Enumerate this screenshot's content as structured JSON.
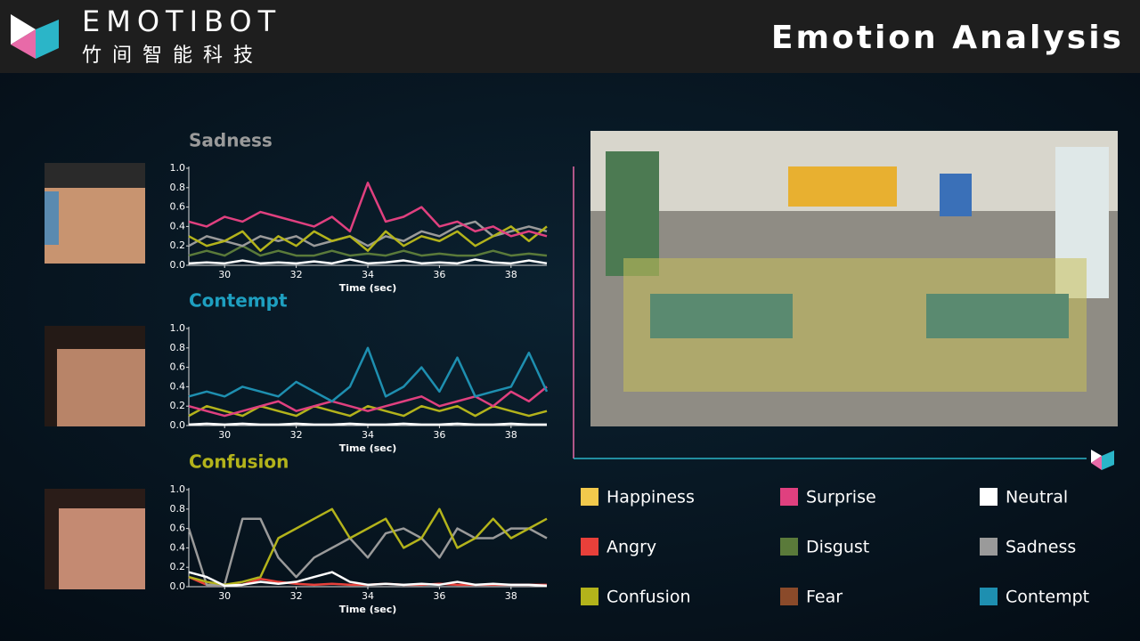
{
  "header": {
    "brand": "EMOTIBOT",
    "brand_cn": "竹间智能科技",
    "title": "Emotion Analysis"
  },
  "legend": [
    {
      "label": "Happiness",
      "color": "#f2c94c"
    },
    {
      "label": "Surprise",
      "color": "#e0407f"
    },
    {
      "label": "Neutral",
      "color": "#ffffff"
    },
    {
      "label": "Angry",
      "color": "#e8403a"
    },
    {
      "label": "Disgust",
      "color": "#5a7a3a"
    },
    {
      "label": "Sadness",
      "color": "#9a9a9a"
    },
    {
      "label": "Confusion",
      "color": "#b3b31b"
    },
    {
      "label": "Fear",
      "color": "#8a4a2a"
    },
    {
      "label": "Contempt",
      "color": "#1e8fb0"
    }
  ],
  "chart_data": [
    {
      "type": "line",
      "title": "Sadness",
      "title_color": "#9a9a9a",
      "xlabel": "Time (sec)",
      "x": [
        29,
        29.5,
        30,
        30.5,
        31,
        31.5,
        32,
        32.5,
        33,
        33.5,
        34,
        34.5,
        35,
        35.5,
        36,
        36.5,
        37,
        37.5,
        38,
        38.5,
        39
      ],
      "xlim": [
        29,
        39
      ],
      "xticks": [
        30,
        32,
        34,
        36,
        38
      ],
      "ylim": [
        0,
        1
      ],
      "yticks": [
        {
          "value": 0,
          "label": "0.0"
        },
        0.2,
        0.4,
        0.6,
        0.8,
        {
          "value": 1,
          "label": "1.0"
        }
      ],
      "series": [
        {
          "color": "#5a7a3a",
          "values": [
            0.1,
            0.15,
            0.1,
            0.2,
            0.1,
            0.15,
            0.1,
            0.1,
            0.15,
            0.1,
            0.12,
            0.1,
            0.15,
            0.1,
            0.12,
            0.1,
            0.1,
            0.15,
            0.1,
            0.12,
            0.1
          ]
        },
        {
          "color": "#9a9a9a",
          "values": [
            0.2,
            0.3,
            0.25,
            0.2,
            0.3,
            0.25,
            0.3,
            0.2,
            0.25,
            0.3,
            0.2,
            0.3,
            0.25,
            0.35,
            0.3,
            0.4,
            0.45,
            0.3,
            0.35,
            0.4,
            0.35
          ]
        },
        {
          "color": "#b3b31b",
          "values": [
            0.3,
            0.2,
            0.25,
            0.35,
            0.15,
            0.3,
            0.2,
            0.35,
            0.25,
            0.3,
            0.15,
            0.35,
            0.2,
            0.3,
            0.25,
            0.35,
            0.2,
            0.3,
            0.4,
            0.25,
            0.4
          ]
        },
        {
          "color": "#e0407f",
          "values": [
            0.45,
            0.4,
            0.5,
            0.45,
            0.55,
            0.5,
            0.45,
            0.4,
            0.5,
            0.35,
            0.85,
            0.45,
            0.5,
            0.6,
            0.4,
            0.45,
            0.35,
            0.4,
            0.3,
            0.35,
            0.3
          ]
        },
        {
          "color": "#ffffff",
          "values": [
            0.02,
            0.03,
            0.02,
            0.05,
            0.02,
            0.03,
            0.02,
            0.04,
            0.02,
            0.06,
            0.02,
            0.03,
            0.05,
            0.02,
            0.03,
            0.02,
            0.06,
            0.03,
            0.02,
            0.05,
            0.02
          ]
        }
      ]
    },
    {
      "type": "line",
      "title": "Contempt",
      "title_color": "#1e9fc0",
      "xlabel": "Time (sec)",
      "x": [
        29,
        29.5,
        30,
        30.5,
        31,
        31.5,
        32,
        32.5,
        33,
        33.5,
        34,
        34.5,
        35,
        35.5,
        36,
        36.5,
        37,
        37.5,
        38,
        38.5,
        39
      ],
      "xlim": [
        29,
        39
      ],
      "xticks": [
        30,
        32,
        34,
        36,
        38
      ],
      "ylim": [
        0,
        1
      ],
      "yticks": [
        {
          "value": 0,
          "label": "0.0"
        },
        0.2,
        0.4,
        0.6,
        0.8,
        {
          "value": 1,
          "label": "1.0"
        }
      ],
      "series": [
        {
          "color": "#b3b31b",
          "values": [
            0.1,
            0.2,
            0.15,
            0.1,
            0.2,
            0.15,
            0.1,
            0.2,
            0.15,
            0.1,
            0.2,
            0.15,
            0.1,
            0.2,
            0.15,
            0.2,
            0.1,
            0.2,
            0.15,
            0.1,
            0.15
          ]
        },
        {
          "color": "#e0407f",
          "values": [
            0.2,
            0.15,
            0.1,
            0.15,
            0.2,
            0.25,
            0.15,
            0.2,
            0.25,
            0.2,
            0.15,
            0.2,
            0.25,
            0.3,
            0.2,
            0.25,
            0.3,
            0.2,
            0.35,
            0.25,
            0.4
          ]
        },
        {
          "color": "#1e8fb0",
          "values": [
            0.3,
            0.35,
            0.3,
            0.4,
            0.35,
            0.3,
            0.45,
            0.35,
            0.25,
            0.4,
            0.8,
            0.3,
            0.4,
            0.6,
            0.35,
            0.7,
            0.3,
            0.35,
            0.4,
            0.75,
            0.35
          ]
        },
        {
          "color": "#ffffff",
          "values": [
            0.01,
            0.02,
            0.01,
            0.02,
            0.01,
            0.01,
            0.02,
            0.01,
            0.01,
            0.02,
            0.01,
            0.01,
            0.02,
            0.01,
            0.01,
            0.02,
            0.01,
            0.01,
            0.02,
            0.01,
            0.01
          ]
        }
      ]
    },
    {
      "type": "line",
      "title": "Confusion",
      "title_color": "#b3b31b",
      "xlabel": "Time (sec)",
      "x": [
        29,
        29.5,
        30,
        30.5,
        31,
        31.5,
        32,
        32.5,
        33,
        33.5,
        34,
        34.5,
        35,
        35.5,
        36,
        36.5,
        37,
        37.5,
        38,
        38.5,
        39
      ],
      "xlim": [
        29,
        39
      ],
      "xticks": [
        30,
        32,
        34,
        36,
        38
      ],
      "ylim": [
        0,
        1
      ],
      "yticks": [
        {
          "value": 0,
          "label": "0.0"
        },
        0.2,
        0.4,
        0.6,
        0.8,
        {
          "value": 1,
          "label": "1.0"
        }
      ],
      "series": [
        {
          "color": "#e8403a",
          "values": [
            0.1,
            0.02,
            0.02,
            0.02,
            0.08,
            0.05,
            0.03,
            0.02,
            0.03,
            0.02,
            0.02,
            0.03,
            0.02,
            0.02,
            0.03,
            0.02,
            0.02,
            0.02,
            0.02,
            0.02,
            0.02
          ]
        },
        {
          "color": "#9a9a9a",
          "values": [
            0.6,
            0.02,
            0.02,
            0.7,
            0.7,
            0.3,
            0.1,
            0.3,
            0.4,
            0.5,
            0.3,
            0.55,
            0.6,
            0.5,
            0.3,
            0.6,
            0.5,
            0.5,
            0.6,
            0.6,
            0.5
          ]
        },
        {
          "color": "#b3b31b",
          "values": [
            0.1,
            0.05,
            0.02,
            0.05,
            0.1,
            0.5,
            0.6,
            0.7,
            0.8,
            0.5,
            0.6,
            0.7,
            0.4,
            0.5,
            0.8,
            0.4,
            0.5,
            0.7,
            0.5,
            0.6,
            0.7
          ]
        },
        {
          "color": "#ffffff",
          "values": [
            0.15,
            0.1,
            0.01,
            0.02,
            0.05,
            0.03,
            0.05,
            0.1,
            0.15,
            0.05,
            0.02,
            0.03,
            0.02,
            0.03,
            0.02,
            0.05,
            0.02,
            0.03,
            0.02,
            0.02,
            0.01
          ]
        }
      ]
    }
  ]
}
